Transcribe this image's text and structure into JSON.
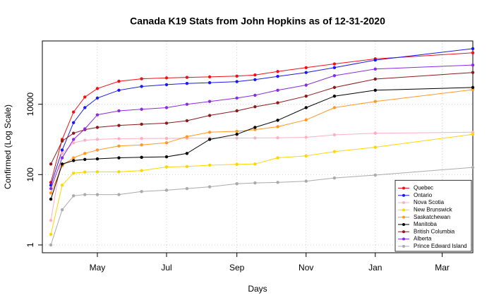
{
  "chart_data": {
    "type": "scatter",
    "title": "Canada K19 Stats from John Hopkins as of 12-31-2020",
    "x_label": "Days",
    "y_label": "Confirmed (Log Scale)",
    "x": [
      80,
      90,
      100,
      110,
      121,
      140,
      160,
      182,
      200,
      220,
      244,
      260,
      280,
      305,
      330,
      366,
      452
    ],
    "xlim": [
      72.5,
      452
    ],
    "xticks": [
      {
        "value": 121,
        "label": "May"
      },
      {
        "value": 182,
        "label": "Jul"
      },
      {
        "value": 244,
        "label": "Sep"
      },
      {
        "value": 305,
        "label": "Nov"
      },
      {
        "value": 366,
        "label": "Jan"
      },
      {
        "value": 425,
        "label": "Mar"
      }
    ],
    "ylim": [
      0.6,
      630000
    ],
    "yticks": [
      1,
      100,
      10000
    ],
    "log_scale": "y",
    "grid": true,
    "legend": "bottom-right",
    "series": [
      {
        "name": "Quebec",
        "color": "#ee1111",
        "values": [
          60,
          1000,
          6000,
          16000,
          28000,
          45000,
          53000,
          56000,
          58000,
          60000,
          63000,
          68000,
          85000,
          110000,
          140000,
          195000,
          290000
        ]
      },
      {
        "name": "Ontario",
        "color": "#1a1aee",
        "values": [
          50,
          500,
          3000,
          8000,
          15000,
          25000,
          32000,
          36000,
          39000,
          41000,
          44000,
          50000,
          62000,
          80000,
          110000,
          180000,
          380000
        ]
      },
      {
        "name": "Nova Scotia",
        "color": "#ffb0c0",
        "values": [
          5,
          400,
          800,
          950,
          1000,
          1050,
          1060,
          1070,
          1080,
          1090,
          1090,
          1100,
          1110,
          1150,
          1350,
          1500,
          1600
        ]
      },
      {
        "name": "New Brunswick",
        "color": "#ffd700",
        "values": [
          2,
          50,
          110,
          118,
          120,
          120,
          130,
          165,
          170,
          185,
          195,
          200,
          300,
          340,
          450,
          600,
          1400
        ]
      },
      {
        "name": "Saskatchewan",
        "color": "#ff9922",
        "values": [
          30,
          180,
          300,
          400,
          500,
          650,
          700,
          800,
          1200,
          1600,
          1700,
          1900,
          2300,
          3600,
          8000,
          12000,
          26000
        ]
      },
      {
        "name": "Manitoba",
        "color": "#000000",
        "values": [
          20,
          200,
          250,
          270,
          280,
          300,
          310,
          320,
          400,
          1000,
          1400,
          2200,
          3500,
          8000,
          17000,
          25000,
          30000
        ]
      },
      {
        "name": "British Columbia",
        "color": "#8b1a1a",
        "values": [
          200,
          900,
          1500,
          1900,
          2200,
          2500,
          2700,
          2900,
          3400,
          4800,
          6500,
          8500,
          11000,
          17000,
          30000,
          52000,
          80000
        ]
      },
      {
        "name": "Alberta",
        "color": "#8a2be2",
        "values": [
          40,
          300,
          1000,
          2000,
          5000,
          6500,
          7200,
          8000,
          10000,
          12000,
          15000,
          18000,
          25000,
          35000,
          65000,
          100000,
          130000
        ]
      },
      {
        "name": "Prince Edward Island",
        "color": "#aaaaaa",
        "values": [
          1,
          10,
          25,
          27,
          27,
          27,
          33,
          36,
          40,
          45,
          55,
          58,
          60,
          65,
          80,
          97,
          160
        ]
      }
    ]
  }
}
